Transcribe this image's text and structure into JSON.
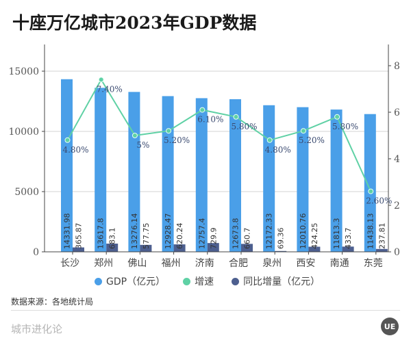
{
  "title": "十座万亿城市2023年GDP数据",
  "chart_data": {
    "type": "bar",
    "title": "十座万亿城市2023年GDP数据",
    "categories": [
      "长沙",
      "郑州",
      "佛山",
      "福州",
      "济南",
      "合肥",
      "泉州",
      "西安",
      "南通",
      "东莞"
    ],
    "series": [
      {
        "name": "GDP（亿元）",
        "type": "bar",
        "axis": "left",
        "color": "#4a9fe8",
        "values": [
          14331.98,
          13617.8,
          13276.14,
          12928.47,
          12757.4,
          12673.8,
          12172.33,
          12010.76,
          11813.3,
          11438.13
        ],
        "labels": [
          "14331.98",
          "13617.8",
          "13276.14",
          "12928.47",
          "12757.4",
          "12673.8",
          "12172.33",
          "12010.76",
          "11813.3",
          "11438.13"
        ]
      },
      {
        "name": "同比增量（亿元）",
        "type": "bar",
        "axis": "left",
        "color": "#4d5f8f",
        "values": [
          365.87,
          683.1,
          577.75,
          620.24,
          729.9,
          660.7,
          69.36,
          424.25,
          433.7,
          237.81
        ],
        "labels": [
          "365.87",
          "683.1",
          "577.75",
          "620.24",
          "729.9",
          "660.7",
          "69.36",
          "424.25",
          "433.7",
          "237.81"
        ]
      },
      {
        "name": "增速",
        "type": "line",
        "axis": "right",
        "color": "#5fd1a5",
        "values": [
          4.8,
          7.4,
          5.0,
          5.2,
          6.1,
          5.8,
          4.8,
          5.2,
          5.8,
          2.6
        ],
        "labels": [
          "4.80%",
          "7.40%",
          "5%",
          "5.20%",
          "6.10%",
          "5.80%",
          "4.80%",
          "5.20%",
          "5.80%",
          "2.60%"
        ]
      }
    ],
    "left_axis": {
      "ylim": [
        0,
        17500
      ],
      "ticks": [
        0,
        5000,
        10000,
        15000
      ],
      "tick_labels": [
        "0",
        "5000",
        "10000",
        "15000"
      ]
    },
    "right_axis": {
      "ylim": [
        0,
        9
      ],
      "ticks": [
        0,
        2,
        4,
        6,
        8
      ],
      "tick_labels": [
        "0",
        "2",
        "4",
        "6",
        "8"
      ]
    },
    "grid": true,
    "legend": "bottom",
    "xlabel": "",
    "ylabel": ""
  },
  "legend": [
    {
      "label": "GDP（亿元）",
      "color": "#4a9fe8"
    },
    {
      "label": "增速",
      "color": "#5fd1a5"
    },
    {
      "label": "同比增量（亿元）",
      "color": "#4d5f8f"
    }
  ],
  "source": "数据来源：各地统计局",
  "brand": "城市进化论",
  "logo": "UE"
}
